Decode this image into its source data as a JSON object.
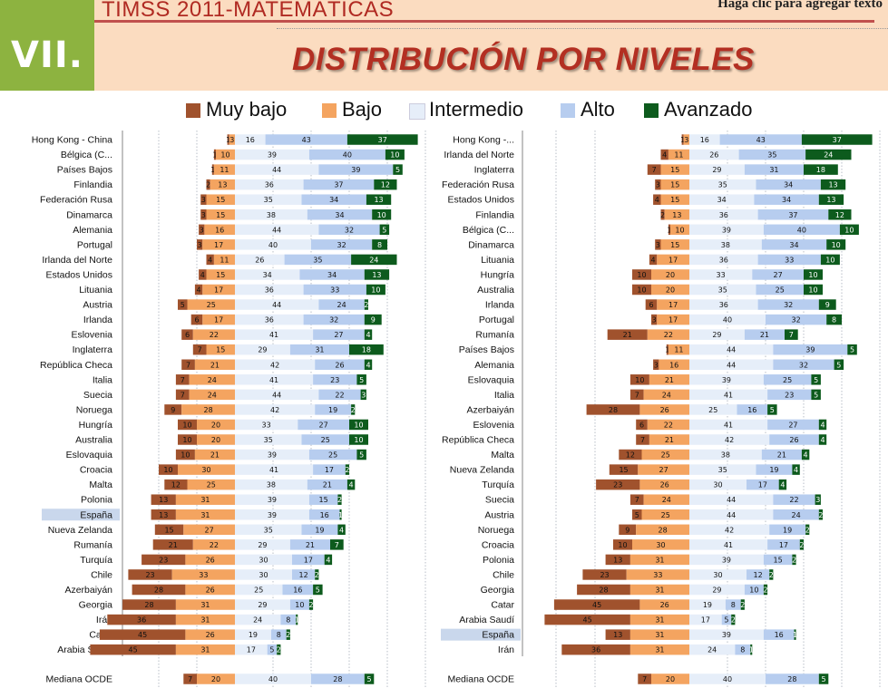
{
  "header": {
    "section_number": "VII.",
    "study_title": "TIMSS 2011-MATEMÁTICAS",
    "click_hint": "Haga clic para agregar texto",
    "main_title": "DISTRIBUCIÓN POR NIVELES"
  },
  "colors": {
    "Muy bajo": "#a0522d",
    "Bajo": "#f4a460",
    "Intermedio": "#e6eef9",
    "Alto": "#b7cdef",
    "Avanzado": "#0d5b1d",
    "highlight_row": "#c9d7ec"
  },
  "legend": [
    "Muy bajo",
    "Bajo",
    "Intermedio",
    "Alto",
    "Avanzado"
  ],
  "chart_data": [
    {
      "type": "bar",
      "stacked": "diverging",
      "series_names": [
        "Muy bajo",
        "Bajo",
        "Intermedio",
        "Alto",
        "Avanzado"
      ],
      "highlight": "España",
      "rows": [
        {
          "label": "Hong Kong - China",
          "values": [
            1,
            3,
            16,
            43,
            37
          ]
        },
        {
          "label": "Bélgica (C...",
          "values": [
            1,
            10,
            39,
            40,
            10
          ]
        },
        {
          "label": "Países Bajos",
          "values": [
            1,
            11,
            44,
            39,
            5
          ]
        },
        {
          "label": "Finlandia",
          "values": [
            2,
            13,
            36,
            37,
            12
          ]
        },
        {
          "label": "Federación Rusa",
          "values": [
            3,
            15,
            35,
            34,
            13
          ]
        },
        {
          "label": "Dinamarca",
          "values": [
            3,
            15,
            38,
            34,
            10
          ]
        },
        {
          "label": "Alemania",
          "values": [
            3,
            16,
            44,
            32,
            5
          ]
        },
        {
          "label": "Portugal",
          "values": [
            3,
            17,
            40,
            32,
            8
          ]
        },
        {
          "label": "Irlanda del Norte",
          "values": [
            4,
            11,
            26,
            35,
            24
          ]
        },
        {
          "label": "Estados Unidos",
          "values": [
            4,
            15,
            34,
            34,
            13
          ]
        },
        {
          "label": "Lituania",
          "values": [
            4,
            17,
            36,
            33,
            10
          ]
        },
        {
          "label": "Austria",
          "values": [
            5,
            25,
            44,
            24,
            2
          ]
        },
        {
          "label": "Irlanda",
          "values": [
            6,
            17,
            36,
            32,
            9
          ]
        },
        {
          "label": "Eslovenia",
          "values": [
            6,
            22,
            41,
            27,
            4
          ]
        },
        {
          "label": "Inglaterra",
          "values": [
            7,
            15,
            29,
            31,
            18
          ]
        },
        {
          "label": "República Checa",
          "values": [
            7,
            21,
            42,
            26,
            4
          ]
        },
        {
          "label": "Italia",
          "values": [
            7,
            24,
            41,
            23,
            5
          ]
        },
        {
          "label": "Suecia",
          "values": [
            7,
            24,
            44,
            22,
            3
          ]
        },
        {
          "label": "Noruega",
          "values": [
            9,
            28,
            42,
            19,
            2
          ]
        },
        {
          "label": "Hungría",
          "values": [
            10,
            20,
            33,
            27,
            10
          ]
        },
        {
          "label": "Australia",
          "values": [
            10,
            20,
            35,
            25,
            10
          ]
        },
        {
          "label": "Eslovaquia",
          "values": [
            10,
            21,
            39,
            25,
            5
          ]
        },
        {
          "label": "Croacia",
          "values": [
            10,
            30,
            41,
            17,
            2
          ]
        },
        {
          "label": "Malta",
          "values": [
            12,
            25,
            38,
            21,
            4
          ]
        },
        {
          "label": "Polonia",
          "values": [
            13,
            31,
            39,
            15,
            2
          ]
        },
        {
          "label": "España",
          "values": [
            13,
            31,
            39,
            16,
            1
          ]
        },
        {
          "label": "Nueva Zelanda",
          "values": [
            15,
            27,
            35,
            19,
            4
          ]
        },
        {
          "label": "Rumanía",
          "values": [
            21,
            22,
            29,
            21,
            7
          ]
        },
        {
          "label": "Turquía",
          "values": [
            23,
            26,
            30,
            17,
            4
          ]
        },
        {
          "label": "Chile",
          "values": [
            23,
            33,
            30,
            12,
            2
          ]
        },
        {
          "label": "Azerbaiyán",
          "values": [
            28,
            26,
            25,
            16,
            5
          ]
        },
        {
          "label": "Georgia",
          "values": [
            28,
            31,
            29,
            10,
            2
          ]
        },
        {
          "label": "Irán",
          "values": [
            36,
            31,
            24,
            8,
            1
          ]
        },
        {
          "label": "Catar",
          "values": [
            45,
            26,
            19,
            8,
            2
          ]
        },
        {
          "label": "Arabia Saudí",
          "values": [
            45,
            31,
            17,
            5,
            2
          ]
        }
      ],
      "median": {
        "label": "Mediana OCDE",
        "values": [
          7,
          20,
          40,
          28,
          5
        ]
      }
    },
    {
      "type": "bar",
      "stacked": "diverging",
      "series_names": [
        "Muy bajo",
        "Bajo",
        "Intermedio",
        "Alto",
        "Avanzado"
      ],
      "highlight": "España",
      "rows": [
        {
          "label": "Hong Kong -...",
          "values": [
            1,
            3,
            16,
            43,
            37
          ]
        },
        {
          "label": "Irlanda del Norte",
          "values": [
            4,
            11,
            26,
            35,
            24
          ]
        },
        {
          "label": "Inglaterra",
          "values": [
            7,
            15,
            29,
            31,
            18
          ]
        },
        {
          "label": "Federación Rusa",
          "values": [
            3,
            15,
            35,
            34,
            13
          ]
        },
        {
          "label": "Estados Unidos",
          "values": [
            4,
            15,
            34,
            34,
            13
          ]
        },
        {
          "label": "Finlandia",
          "values": [
            2,
            13,
            36,
            37,
            12
          ]
        },
        {
          "label": "Bélgica (C...",
          "values": [
            1,
            10,
            39,
            40,
            10
          ]
        },
        {
          "label": "Dinamarca",
          "values": [
            3,
            15,
            38,
            34,
            10
          ]
        },
        {
          "label": "Lituania",
          "values": [
            4,
            17,
            36,
            33,
            10
          ]
        },
        {
          "label": "Hungría",
          "values": [
            10,
            20,
            33,
            27,
            10
          ]
        },
        {
          "label": "Australia",
          "values": [
            10,
            20,
            35,
            25,
            10
          ]
        },
        {
          "label": "Irlanda",
          "values": [
            6,
            17,
            36,
            32,
            9
          ]
        },
        {
          "label": "Portugal",
          "values": [
            3,
            17,
            40,
            32,
            8
          ]
        },
        {
          "label": "Rumanía",
          "values": [
            21,
            22,
            29,
            21,
            7
          ]
        },
        {
          "label": "Países Bajos",
          "values": [
            1,
            11,
            44,
            39,
            5
          ]
        },
        {
          "label": "Alemania",
          "values": [
            3,
            16,
            44,
            32,
            5
          ]
        },
        {
          "label": "Eslovaquia",
          "values": [
            10,
            21,
            39,
            25,
            5
          ]
        },
        {
          "label": "Italia",
          "values": [
            7,
            24,
            41,
            23,
            5
          ]
        },
        {
          "label": "Azerbaiyán",
          "values": [
            28,
            26,
            25,
            16,
            5
          ]
        },
        {
          "label": "Eslovenia",
          "values": [
            6,
            22,
            41,
            27,
            4
          ]
        },
        {
          "label": "República Checa",
          "values": [
            7,
            21,
            42,
            26,
            4
          ]
        },
        {
          "label": "Malta",
          "values": [
            12,
            25,
            38,
            21,
            4
          ]
        },
        {
          "label": "Nueva Zelanda",
          "values": [
            15,
            27,
            35,
            19,
            4
          ]
        },
        {
          "label": "Turquía",
          "values": [
            23,
            26,
            30,
            17,
            4
          ]
        },
        {
          "label": "Suecia",
          "values": [
            7,
            24,
            44,
            22,
            3
          ]
        },
        {
          "label": "Austria",
          "values": [
            5,
            25,
            44,
            24,
            2
          ]
        },
        {
          "label": "Noruega",
          "values": [
            9,
            28,
            42,
            19,
            2
          ]
        },
        {
          "label": "Croacia",
          "values": [
            10,
            30,
            41,
            17,
            2
          ]
        },
        {
          "label": "Polonia",
          "values": [
            13,
            31,
            39,
            15,
            2
          ]
        },
        {
          "label": "Chile",
          "values": [
            23,
            33,
            30,
            12,
            2
          ]
        },
        {
          "label": "Georgia",
          "values": [
            28,
            31,
            29,
            10,
            2
          ]
        },
        {
          "label": "Catar",
          "values": [
            45,
            26,
            19,
            8,
            2
          ]
        },
        {
          "label": "Arabia Saudí",
          "values": [
            45,
            31,
            17,
            5,
            2
          ]
        },
        {
          "label": "España",
          "values": [
            13,
            31,
            39,
            16,
            1
          ]
        },
        {
          "label": "Irán",
          "values": [
            36,
            31,
            24,
            8,
            1
          ]
        }
      ],
      "median": {
        "label": "Mediana OCDE",
        "values": [
          7,
          20,
          40,
          28,
          5
        ]
      }
    }
  ]
}
